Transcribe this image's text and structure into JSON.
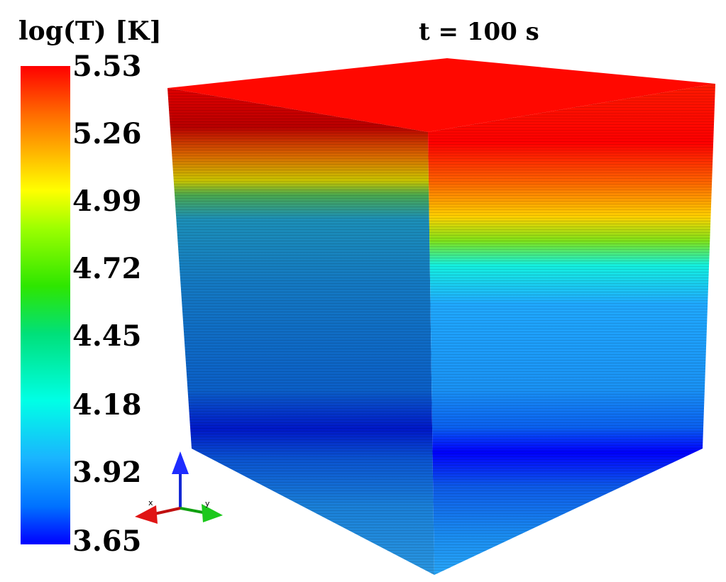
{
  "colorbar": {
    "title": "log(T) [K]",
    "ticks": [
      "5.53",
      "5.26",
      "4.99",
      "4.72",
      "4.45",
      "4.18",
      "3.92",
      "3.65"
    ],
    "max": 5.53,
    "min": 3.65
  },
  "time_label": "t = 100 s",
  "axes_triad": {
    "x_label": "x",
    "y_label": "y"
  },
  "colors": {
    "red": "#ff0000",
    "yellow": "#ffff00",
    "green": "#2ee600",
    "cyan": "#00ffe6",
    "blue": "#0000ff"
  }
}
